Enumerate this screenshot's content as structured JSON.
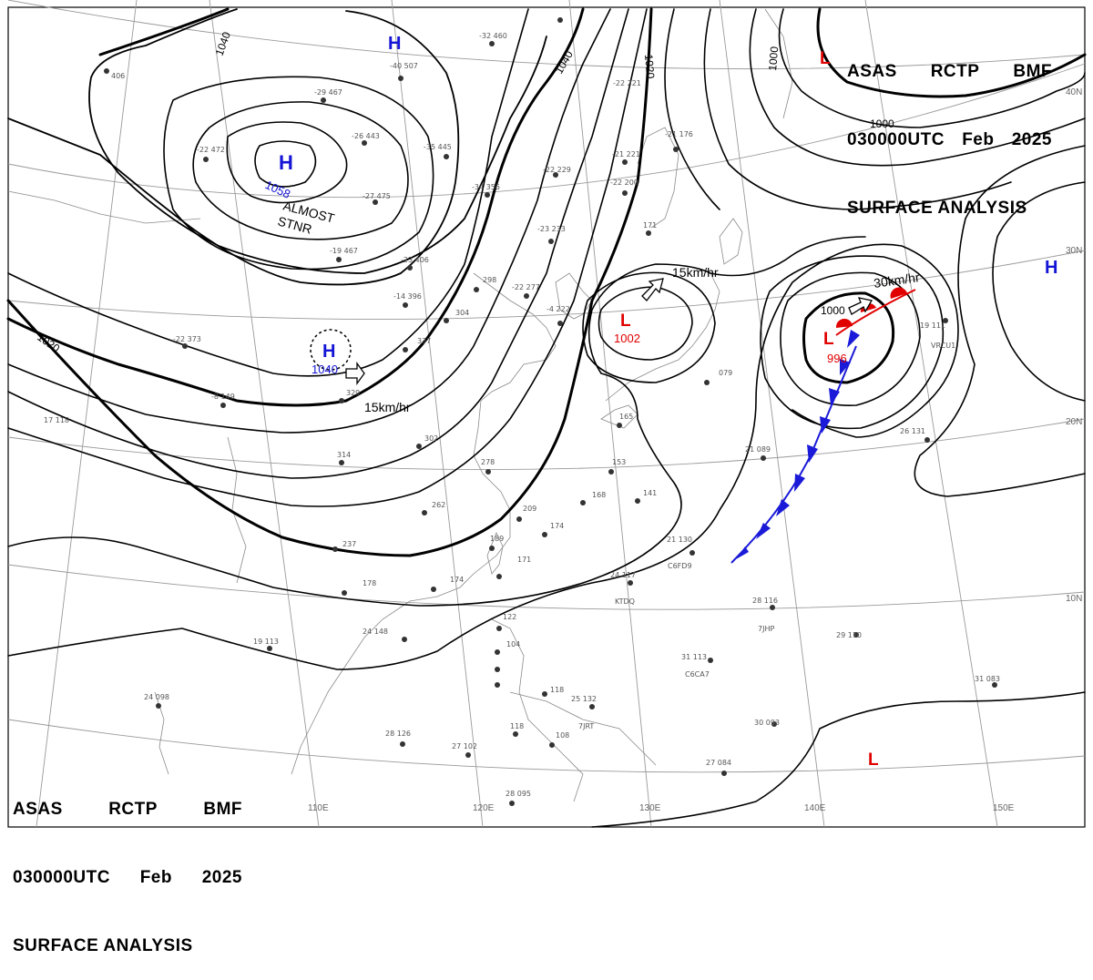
{
  "header_top": {
    "line1": [
      "ASAS",
      "RCTP",
      "BMF"
    ],
    "line2": [
      "030000UTC",
      "Feb",
      "2025"
    ],
    "line3": "SURFACE ANALYSIS"
  },
  "header_bottom": {
    "line1": [
      "ASAS",
      "RCTP",
      "BMF"
    ],
    "line2": [
      "030000UTC",
      "Feb",
      "2025"
    ],
    "line3": "SURFACE ANALYSIS"
  },
  "colors": {
    "high": "#1515d6",
    "low": "#e00000",
    "front": "#1a1ad8",
    "isobar": "#000000",
    "graticule": "#9a9a9a",
    "station": "#555555"
  },
  "longitude_labels": [
    "110E",
    "120E",
    "130E",
    "140E",
    "150E"
  ],
  "latitude_labels": [
    "40N",
    "30N",
    "20N",
    "10N"
  ],
  "isobar_labels": [
    "1040",
    "1040",
    "1020",
    "1020",
    "1000",
    "1000",
    "1000"
  ],
  "pressure_centers": [
    {
      "type": "H",
      "value": "1058"
    },
    {
      "type": "H",
      "value": "1040"
    },
    {
      "type": "H",
      "value": ""
    },
    {
      "type": "H",
      "value": ""
    },
    {
      "type": "L",
      "value": "1002"
    },
    {
      "type": "L",
      "value": "996"
    },
    {
      "type": "L",
      "value": ""
    },
    {
      "type": "L",
      "value": ""
    }
  ],
  "annotations": {
    "almost_stnr": [
      "ALMOST",
      "STNR"
    ],
    "motion_1": "15km/hr",
    "motion_2": "15km/hr",
    "motion_3": "30km/hr"
  },
  "stations": [
    {
      "id": "s1",
      "text": "406"
    },
    {
      "id": "s2",
      "text": "-40  507"
    },
    {
      "id": "s3",
      "text": "-29  467"
    },
    {
      "id": "s4",
      "text": "-26  443"
    },
    {
      "id": "s5",
      "text": "-35  445"
    },
    {
      "id": "s6",
      "text": "-22  472"
    },
    {
      "id": "s7",
      "text": "-27  475"
    },
    {
      "id": "s8",
      "text": "-19  467"
    },
    {
      "id": "s9",
      "text": "-23  406"
    },
    {
      "id": "s10",
      "text": "-14  396"
    },
    {
      "id": "s11",
      "text": "-22  373"
    },
    {
      "id": "s12",
      "text": "337"
    },
    {
      "id": "s13",
      "text": "-8  149"
    },
    {
      "id": "s14",
      "text": "17  118"
    },
    {
      "id": "s15",
      "text": "329"
    },
    {
      "id": "s16",
      "text": "-34  356"
    },
    {
      "id": "s17",
      "text": "298"
    },
    {
      "id": "s18",
      "text": "304"
    },
    {
      "id": "s19",
      "text": "-22  277"
    },
    {
      "id": "s20",
      "text": "-23  233"
    },
    {
      "id": "s21",
      "text": "-22  229"
    },
    {
      "id": "s22",
      "text": "-22  200"
    },
    {
      "id": "s23",
      "text": "171"
    },
    {
      "id": "s24",
      "text": "-21  221"
    },
    {
      "id": "s25",
      "text": "-21  176"
    },
    {
      "id": "s26",
      "text": "-32  460"
    },
    {
      "id": "s27",
      "text": "-4  222"
    },
    {
      "id": "s28",
      "text": "302"
    },
    {
      "id": "s29",
      "text": "314"
    },
    {
      "id": "s30",
      "text": "278"
    },
    {
      "id": "s31",
      "text": "262"
    },
    {
      "id": "s32",
      "text": "237"
    },
    {
      "id": "s33",
      "text": "178"
    },
    {
      "id": "s34",
      "text": "174"
    },
    {
      "id": "s35",
      "text": "209"
    },
    {
      "id": "s36",
      "text": "189"
    },
    {
      "id": "s37",
      "text": "171"
    },
    {
      "id": "s38",
      "text": "174"
    },
    {
      "id": "s39",
      "text": "168"
    },
    {
      "id": "s40",
      "text": "141"
    },
    {
      "id": "s41",
      "text": "153"
    },
    {
      "id": "s42",
      "text": "165"
    },
    {
      "id": "s43",
      "text": "21  130"
    },
    {
      "id": "s44",
      "text": "24  117"
    },
    {
      "id": "s45",
      "text": "21  089"
    },
    {
      "id": "s46",
      "text": "26  131"
    },
    {
      "id": "s47",
      "text": "19  111"
    },
    {
      "id": "s48",
      "text": "28  116"
    },
    {
      "id": "s49",
      "text": "29  110"
    },
    {
      "id": "s50",
      "text": "31  113"
    },
    {
      "id": "s51",
      "text": "31  083"
    },
    {
      "id": "s52",
      "text": "30  093"
    },
    {
      "id": "s53",
      "text": "27  084"
    },
    {
      "id": "s54",
      "text": "24  148"
    },
    {
      "id": "s55",
      "text": "19  113"
    },
    {
      "id": "s56",
      "text": "24  098"
    },
    {
      "id": "s57",
      "text": "28  126"
    },
    {
      "id": "s58",
      "text": "27  102"
    },
    {
      "id": "s59",
      "text": "28  095"
    },
    {
      "id": "s60",
      "text": "118"
    },
    {
      "id": "s61",
      "text": "108"
    },
    {
      "id": "s62",
      "text": "25  132"
    },
    {
      "id": "s63",
      "text": "118"
    },
    {
      "id": "s64",
      "text": "104"
    },
    {
      "id": "s65",
      "text": "122"
    },
    {
      "id": "s66",
      "text": "079"
    },
    {
      "id": "s67",
      "text": "-22  221"
    }
  ],
  "ship_labels": [
    "KTDQ",
    "C6FD9",
    "7JHP",
    "C6CA7",
    "VRCU1",
    "7JRT"
  ]
}
